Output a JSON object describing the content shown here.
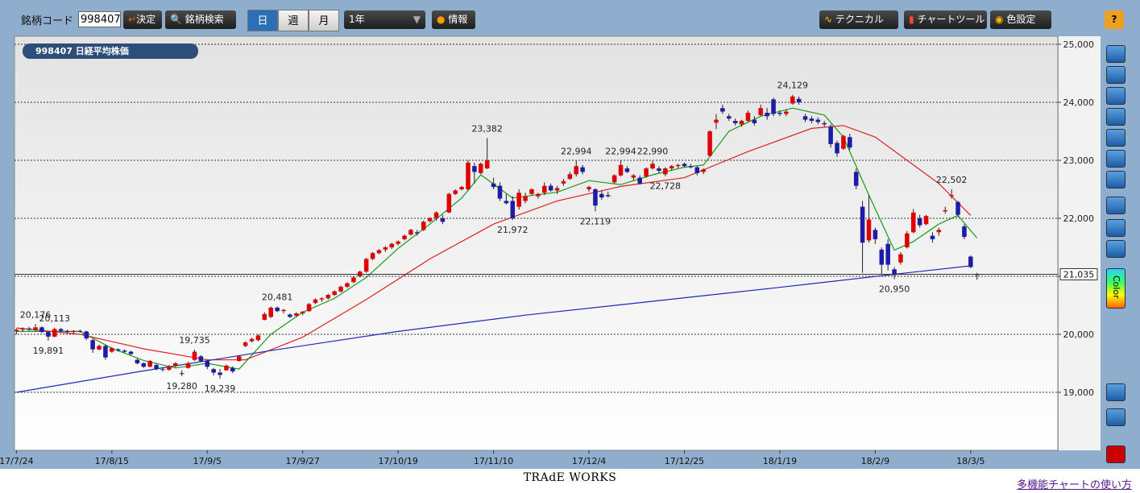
{
  "toolbar": {
    "code_label": "銘柄コード",
    "code_value": "998407",
    "decide": "決定",
    "search": "銘柄検索",
    "periods": [
      "日",
      "週",
      "月"
    ],
    "range": "1年",
    "info": "情報",
    "technical": "テクニカル",
    "chart_tool": "チャートツール",
    "color_setting": "色設定",
    "help": "?"
  },
  "side_toolbar": {
    "color": "Color"
  },
  "footer": {
    "brand": "TRAdE WORKS",
    "link": "多機能チャートの使い方"
  },
  "chart_data": {
    "type": "candlestick",
    "title": "998407 日経平均株価",
    "xlim": [
      -0.3,
      163.7
    ],
    "xticks": [
      {
        "value": 0,
        "label": "17/7/24"
      },
      {
        "value": 15,
        "label": "17/8/15"
      },
      {
        "value": 30,
        "label": "17/9/5"
      },
      {
        "value": 45,
        "label": "17/9/27"
      },
      {
        "value": 60,
        "label": "17/10/19"
      },
      {
        "value": 75,
        "label": "17/11/10"
      },
      {
        "value": 90,
        "label": "17/12/4"
      },
      {
        "value": 105,
        "label": "17/12/25"
      },
      {
        "value": 120,
        "label": "18/1/19"
      },
      {
        "value": 135,
        "label": "18/2/9"
      },
      {
        "value": 150,
        "label": "18/3/5"
      }
    ],
    "ylim": [
      18000,
      25139
    ],
    "yticks": [
      {
        "value": 19000,
        "label": "19,000"
      },
      {
        "value": 20000,
        "label": "20,000"
      },
      {
        "value": 21000,
        "label": "21,000"
      },
      {
        "value": 22000,
        "label": "22,000"
      },
      {
        "value": 23000,
        "label": "23,000"
      },
      {
        "value": 24000,
        "label": "24,000"
      },
      {
        "value": 25000,
        "label": "25,000"
      }
    ],
    "grid": true,
    "up_color": "#e00000",
    "down_color": "#1c1ca8",
    "candles": [
      [
        20050,
        20100,
        20000,
        20080
      ],
      [
        20080,
        20120,
        20040,
        20100
      ],
      [
        20100,
        20130,
        20060,
        20080
      ],
      [
        20080,
        20176,
        20050,
        20120
      ],
      [
        20120,
        20140,
        20020,
        20040
      ],
      [
        20040,
        20060,
        19891,
        19960
      ],
      [
        19960,
        20113,
        19950,
        20090
      ],
      [
        20090,
        20110,
        20040,
        20060
      ],
      [
        20060,
        20080,
        20020,
        20040
      ],
      [
        20040,
        20070,
        20010,
        20060
      ],
      [
        20060,
        20080,
        20030,
        20050
      ],
      [
        20050,
        20060,
        19900,
        19930
      ],
      [
        19900,
        19920,
        19680,
        19740
      ],
      [
        19740,
        19820,
        19720,
        19800
      ],
      [
        19800,
        19820,
        19560,
        19600
      ],
      [
        19700,
        19780,
        19680,
        19760
      ],
      [
        19740,
        19760,
        19700,
        19720
      ],
      [
        19720,
        19740,
        19680,
        19700
      ],
      [
        19700,
        19720,
        19640,
        19660
      ],
      [
        19560,
        19580,
        19480,
        19500
      ],
      [
        19500,
        19520,
        19420,
        19440
      ],
      [
        19440,
        19560,
        19430,
        19540
      ],
      [
        19470,
        19500,
        19380,
        19400
      ],
      [
        19400,
        19420,
        19360,
        19390
      ],
      [
        19390,
        19470,
        19370,
        19450
      ],
      [
        19450,
        19520,
        19430,
        19500
      ],
      [
        19330,
        19380,
        19280,
        19320
      ],
      [
        19420,
        19530,
        19410,
        19500
      ],
      [
        19560,
        19735,
        19540,
        19700
      ],
      [
        19620,
        19640,
        19520,
        19540
      ],
      [
        19540,
        19560,
        19400,
        19440
      ],
      [
        19400,
        19420,
        19290,
        19340
      ],
      [
        19340,
        19400,
        19239,
        19300
      ],
      [
        19380,
        19480,
        19370,
        19460
      ],
      [
        19420,
        19450,
        19330,
        19360
      ],
      [
        19540,
        19640,
        19530,
        19620
      ],
      [
        19800,
        19880,
        19780,
        19860
      ],
      [
        19880,
        19940,
        19860,
        19920
      ],
      [
        19900,
        20000,
        19880,
        19980
      ],
      [
        20250,
        20380,
        20240,
        20350
      ],
      [
        20300,
        20480,
        20280,
        20460
      ],
      [
        20460,
        20481,
        20380,
        20400
      ],
      [
        20400,
        20440,
        20360,
        20420
      ],
      [
        20340,
        20360,
        20280,
        20300
      ],
      [
        20320,
        20380,
        20300,
        20360
      ],
      [
        20360,
        20400,
        20330,
        20390
      ],
      [
        20400,
        20540,
        20390,
        20520
      ],
      [
        20540,
        20620,
        20520,
        20600
      ],
      [
        20600,
        20640,
        20560,
        20620
      ],
      [
        20620,
        20700,
        20600,
        20680
      ],
      [
        20680,
        20760,
        20660,
        20740
      ],
      [
        20740,
        20840,
        20720,
        20820
      ],
      [
        20820,
        20900,
        20800,
        20880
      ],
      [
        20900,
        21000,
        20880,
        20980
      ],
      [
        21000,
        21100,
        20980,
        21080
      ],
      [
        21080,
        21320,
        21060,
        21300
      ],
      [
        21300,
        21420,
        21280,
        21400
      ],
      [
        21400,
        21470,
        21380,
        21450
      ],
      [
        21460,
        21520,
        21420,
        21500
      ],
      [
        21500,
        21580,
        21470,
        21560
      ],
      [
        21560,
        21620,
        21530,
        21600
      ],
      [
        21640,
        21720,
        21620,
        21700
      ],
      [
        21720,
        21820,
        21700,
        21800
      ],
      [
        21760,
        21800,
        21700,
        21740
      ],
      [
        21800,
        21960,
        21780,
        21940
      ],
      [
        21950,
        22020,
        21930,
        22000
      ],
      [
        22000,
        22120,
        21960,
        22100
      ],
      [
        22000,
        22060,
        21900,
        21940
      ],
      [
        22100,
        22440,
        22090,
        22420
      ],
      [
        22420,
        22500,
        22400,
        22480
      ],
      [
        22500,
        22560,
        22480,
        22540
      ],
      [
        22500,
        23000,
        22480,
        22960
      ],
      [
        22900,
        22960,
        22600,
        22800
      ],
      [
        22780,
        22960,
        22760,
        22940
      ],
      [
        22860,
        23382,
        22850,
        23000
      ],
      [
        22600,
        22700,
        22500,
        22540
      ],
      [
        22560,
        22620,
        22300,
        22340
      ],
      [
        22300,
        22420,
        22240,
        22260
      ],
      [
        22300,
        22380,
        21972,
        22000
      ],
      [
        22200,
        22500,
        22150,
        22440
      ],
      [
        22300,
        22440,
        22260,
        22380
      ],
      [
        22420,
        22520,
        22400,
        22500
      ],
      [
        22380,
        22440,
        22340,
        22420
      ],
      [
        22440,
        22620,
        22400,
        22560
      ],
      [
        22560,
        22600,
        22460,
        22480
      ],
      [
        22480,
        22560,
        22420,
        22520
      ],
      [
        22600,
        22680,
        22560,
        22640
      ],
      [
        22680,
        22800,
        22660,
        22760
      ],
      [
        22760,
        22994,
        22720,
        22900
      ],
      [
        22880,
        22920,
        22760,
        22800
      ],
      [
        22500,
        22560,
        22460,
        22540
      ],
      [
        22500,
        22520,
        22119,
        22220
      ],
      [
        22420,
        22480,
        22320,
        22360
      ],
      [
        22400,
        22460,
        22360,
        22380
      ],
      [
        22620,
        22760,
        22600,
        22740
      ],
      [
        22740,
        22994,
        22720,
        22920
      ],
      [
        22860,
        22900,
        22780,
        22800
      ],
      [
        22700,
        22760,
        22660,
        22740
      ],
      [
        22700,
        22740,
        22580,
        22600
      ],
      [
        22720,
        22880,
        22700,
        22860
      ],
      [
        22860,
        22990,
        22840,
        22940
      ],
      [
        22860,
        22900,
        22780,
        22820
      ],
      [
        22760,
        22880,
        22728,
        22860
      ],
      [
        22860,
        22920,
        22820,
        22900
      ],
      [
        22900,
        22940,
        22860,
        22920
      ],
      [
        22940,
        22960,
        22880,
        22900
      ],
      [
        22900,
        22940,
        22860,
        22880
      ],
      [
        22880,
        22900,
        22740,
        22780
      ],
      [
        22800,
        22860,
        22760,
        22840
      ],
      [
        23080,
        23520,
        23060,
        23500
      ],
      [
        23650,
        23800,
        23540,
        23700
      ],
      [
        23900,
        23960,
        23800,
        23840
      ],
      [
        23760,
        23800,
        23680,
        23720
      ],
      [
        23680,
        23720,
        23600,
        23640
      ],
      [
        23620,
        23700,
        23580,
        23680
      ],
      [
        23680,
        23860,
        23660,
        23820
      ],
      [
        23700,
        23760,
        23600,
        23640
      ],
      [
        23780,
        23960,
        23760,
        23900
      ],
      [
        23820,
        23900,
        23700,
        23760
      ],
      [
        24050,
        24080,
        23760,
        23800
      ],
      [
        23820,
        23860,
        23760,
        23800
      ],
      [
        23800,
        23880,
        23760,
        23840
      ],
      [
        23980,
        24129,
        23960,
        24100
      ],
      [
        24060,
        24100,
        23960,
        24000
      ],
      [
        23760,
        23800,
        23660,
        23700
      ],
      [
        23720,
        23760,
        23640,
        23680
      ],
      [
        23700,
        23740,
        23620,
        23660
      ],
      [
        23640,
        23680,
        23580,
        23620
      ],
      [
        23580,
        23620,
        23220,
        23280
      ],
      [
        23300,
        23340,
        23060,
        23120
      ],
      [
        23200,
        23440,
        23180,
        23420
      ],
      [
        23400,
        23460,
        23180,
        23220
      ],
      [
        22800,
        22860,
        22500,
        22560
      ],
      [
        22200,
        22300,
        21060,
        21580
      ],
      [
        21620,
        22400,
        21580,
        21980
      ],
      [
        21800,
        21840,
        21560,
        21640
      ],
      [
        21460,
        21500,
        21040,
        21200
      ],
      [
        21560,
        21640,
        21100,
        21200
      ],
      [
        21120,
        21160,
        20950,
        21020
      ],
      [
        21240,
        21420,
        21200,
        21380
      ],
      [
        21500,
        21780,
        21480,
        21740
      ],
      [
        21760,
        22160,
        21740,
        22100
      ],
      [
        22000,
        22060,
        21840,
        21880
      ],
      [
        21900,
        22060,
        21880,
        22040
      ],
      [
        21700,
        21760,
        21580,
        21640
      ],
      [
        21760,
        21840,
        21700,
        21800
      ],
      [
        22120,
        22200,
        22080,
        22140
      ],
      [
        22380,
        22502,
        22340,
        22400
      ],
      [
        22280,
        22300,
        22020,
        22060
      ],
      [
        21860,
        21900,
        21640,
        21680
      ],
      [
        21340,
        21360,
        21140,
        21160
      ],
      [
        21035,
        21060,
        20940,
        21035
      ]
    ],
    "moving_averages": [
      {
        "color": "#1a9a1a",
        "x": [
          0,
          5,
          10,
          15,
          20,
          25,
          30,
          35,
          40,
          45,
          50,
          55,
          60,
          65,
          70,
          73,
          78,
          85,
          90,
          95,
          100,
          105,
          108,
          112,
          117,
          122,
          127,
          130,
          134,
          138,
          141,
          145,
          148,
          151
        ],
        "values": [
          20050,
          20050,
          20050,
          19760,
          19550,
          19420,
          19500,
          19400,
          20000,
          20380,
          20620,
          20980,
          21480,
          21900,
          22350,
          22750,
          22350,
          22450,
          22650,
          22580,
          22750,
          22880,
          22920,
          23500,
          23760,
          23900,
          23780,
          23400,
          22400,
          21450,
          21600,
          21900,
          22050,
          21660
        ]
      },
      {
        "color": "#e02020",
        "x": [
          0,
          10,
          20,
          30,
          36,
          45,
          55,
          65,
          75,
          85,
          95,
          105,
          115,
          125,
          130,
          135,
          140,
          145,
          150
        ],
        "values": [
          20110,
          20000,
          19750,
          19560,
          19560,
          19950,
          20600,
          21300,
          21900,
          22300,
          22550,
          22700,
          23150,
          23550,
          23600,
          23400,
          23000,
          22600,
          22050
        ]
      },
      {
        "color": "#1c28b8",
        "x": [
          0,
          20,
          40,
          60,
          80,
          100,
          120,
          140,
          150
        ],
        "values": [
          19000,
          19370,
          19720,
          20050,
          20330,
          20570,
          20810,
          21060,
          21180
        ]
      }
    ],
    "last_price": {
      "value": 21035,
      "label": "21,035"
    },
    "annotations": [
      {
        "index": 3,
        "value": 20176,
        "label": "20,176",
        "position": "above"
      },
      {
        "index": 6,
        "value": 20113,
        "label": "20,113",
        "position": "above"
      },
      {
        "index": 5,
        "value": 19891,
        "label": "19,891",
        "position": "below"
      },
      {
        "index": 26,
        "value": 19280,
        "label": "19,280",
        "position": "below"
      },
      {
        "index": 28,
        "value": 19735,
        "label": "19,735",
        "position": "above"
      },
      {
        "index": 32,
        "value": 19239,
        "label": "19,239",
        "position": "below"
      },
      {
        "index": 41,
        "value": 20481,
        "label": "20,481",
        "position": "above"
      },
      {
        "index": 74,
        "value": 23382,
        "label": "23,382",
        "position": "above"
      },
      {
        "index": 78,
        "value": 21972,
        "label": "21,972",
        "position": "below"
      },
      {
        "index": 88,
        "value": 22994,
        "label": "22,994",
        "position": "above"
      },
      {
        "index": 91,
        "value": 22119,
        "label": "22,119",
        "position": "below"
      },
      {
        "index": 95,
        "value": 22994,
        "label": "22,994",
        "position": "above"
      },
      {
        "index": 100,
        "value": 22990,
        "label": "22,990",
        "position": "above"
      },
      {
        "index": 102,
        "value": 22728,
        "label": "22,728",
        "position": "below"
      },
      {
        "index": 122,
        "value": 24129,
        "label": "24,129",
        "position": "above"
      },
      {
        "index": 138,
        "value": 20950,
        "label": "20,950",
        "position": "below"
      },
      {
        "index": 147,
        "value": 22502,
        "label": "22,502",
        "position": "above"
      }
    ]
  }
}
